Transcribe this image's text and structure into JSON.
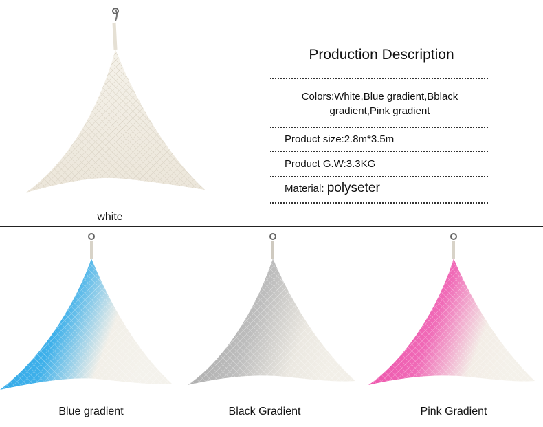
{
  "description": {
    "title": "Production Description",
    "colors_line1": "Colors:White,Blue gradient,Bblack",
    "colors_line2": "gradient,Pink gradient",
    "size": "Product size:2.8m*3.5m",
    "weight": "Product G.W:3.3KG",
    "material_label": "Material: ",
    "material_value": "polyseter"
  },
  "products": [
    {
      "label": "white",
      "tint": "#ece8df"
    },
    {
      "label": "Blue gradient",
      "tint": "#2fa6e6"
    },
    {
      "label": "Black Gradient",
      "tint": "#a9a9a9"
    },
    {
      "label": "Pink Gradient",
      "tint": "#ee4fa8"
    }
  ]
}
